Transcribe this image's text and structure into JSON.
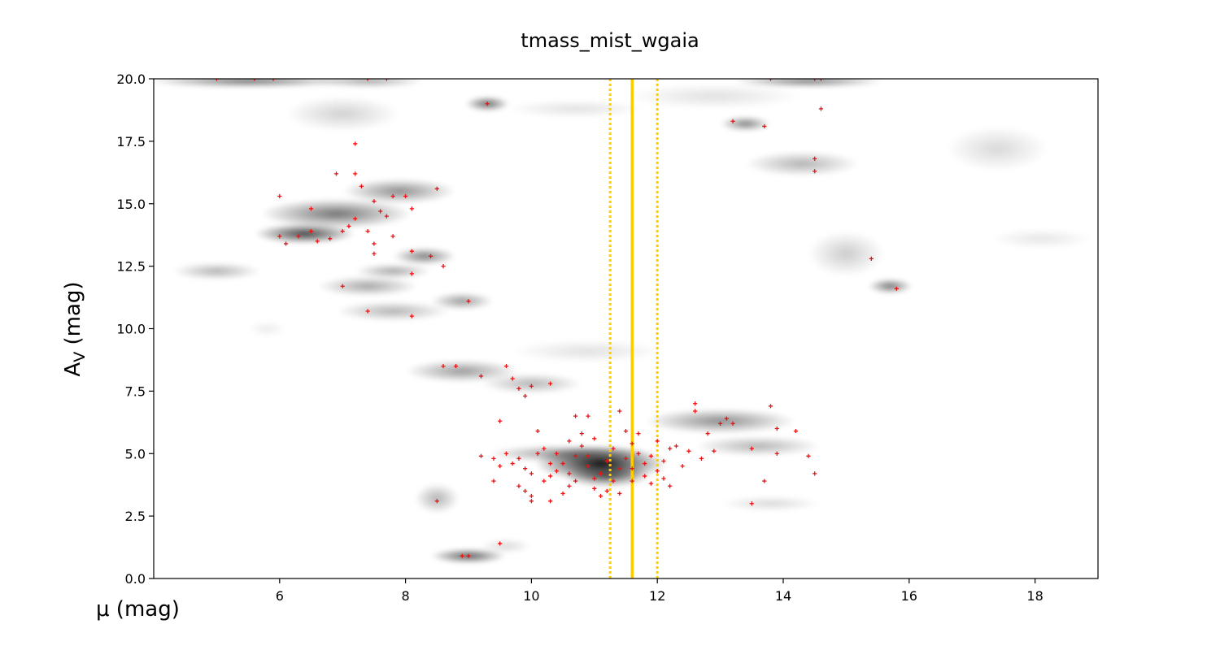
{
  "chart_data": {
    "type": "scatter",
    "title": "tmass_mist_wgaia",
    "xlabel": "μ (mag)",
    "ylabel": {
      "main": "A",
      "sub": "V",
      "rest": " (mag)"
    },
    "xlim": [
      4,
      19
    ],
    "ylim": [
      0,
      20
    ],
    "x_ticks": [
      "6",
      "8",
      "10",
      "12",
      "14",
      "16",
      "18"
    ],
    "y_ticks": [
      "0.0",
      "2.5",
      "5.0",
      "7.5",
      "10.0",
      "12.5",
      "15.0",
      "17.5",
      "20.0"
    ],
    "grid": false,
    "background": "grayscale density (KDE) of posterior samples",
    "density_blobs": [
      {
        "x": 11.1,
        "y": 4.6,
        "sx": 1.05,
        "sy": 0.7,
        "a": 0.95
      },
      {
        "x": 11.2,
        "y": 4.1,
        "sx": 0.7,
        "sy": 0.45,
        "a": 0.6
      },
      {
        "x": 10.6,
        "y": 5.0,
        "sx": 1.3,
        "sy": 0.35,
        "a": 0.45
      },
      {
        "x": 13.0,
        "y": 6.3,
        "sx": 1.2,
        "sy": 0.5,
        "a": 0.45
      },
      {
        "x": 13.6,
        "y": 5.3,
        "sx": 1.0,
        "sy": 0.4,
        "a": 0.3
      },
      {
        "x": 13.8,
        "y": 3.0,
        "sx": 0.8,
        "sy": 0.3,
        "a": 0.15
      },
      {
        "x": 8.9,
        "y": 8.3,
        "sx": 0.9,
        "sy": 0.45,
        "a": 0.4
      },
      {
        "x": 10.0,
        "y": 7.8,
        "sx": 0.8,
        "sy": 0.4,
        "a": 0.3
      },
      {
        "x": 10.9,
        "y": 9.1,
        "sx": 1.2,
        "sy": 0.45,
        "a": 0.12
      },
      {
        "x": 6.4,
        "y": 13.8,
        "sx": 0.8,
        "sy": 0.4,
        "a": 0.75
      },
      {
        "x": 6.9,
        "y": 14.6,
        "sx": 1.2,
        "sy": 0.6,
        "a": 0.55
      },
      {
        "x": 7.9,
        "y": 15.5,
        "sx": 0.9,
        "sy": 0.5,
        "a": 0.45
      },
      {
        "x": 8.3,
        "y": 12.9,
        "sx": 0.5,
        "sy": 0.35,
        "a": 0.5
      },
      {
        "x": 7.4,
        "y": 11.7,
        "sx": 0.8,
        "sy": 0.4,
        "a": 0.35
      },
      {
        "x": 7.8,
        "y": 10.7,
        "sx": 0.9,
        "sy": 0.4,
        "a": 0.3
      },
      {
        "x": 8.9,
        "y": 11.1,
        "sx": 0.5,
        "sy": 0.35,
        "a": 0.4
      },
      {
        "x": 5.0,
        "y": 12.3,
        "sx": 0.7,
        "sy": 0.35,
        "a": 0.3
      },
      {
        "x": 7.8,
        "y": 12.3,
        "sx": 0.6,
        "sy": 0.3,
        "a": 0.35
      },
      {
        "x": 5.5,
        "y": 19.9,
        "sx": 1.6,
        "sy": 0.25,
        "a": 0.55
      },
      {
        "x": 7.4,
        "y": 19.9,
        "sx": 0.9,
        "sy": 0.25,
        "a": 0.35
      },
      {
        "x": 7.0,
        "y": 18.6,
        "sx": 0.9,
        "sy": 0.7,
        "a": 0.18
      },
      {
        "x": 9.3,
        "y": 19.0,
        "sx": 0.35,
        "sy": 0.3,
        "a": 0.6
      },
      {
        "x": 10.7,
        "y": 18.8,
        "sx": 1.1,
        "sy": 0.35,
        "a": 0.12
      },
      {
        "x": 9.0,
        "y": 0.9,
        "sx": 0.6,
        "sy": 0.3,
        "a": 0.65
      },
      {
        "x": 8.5,
        "y": 3.2,
        "sx": 0.35,
        "sy": 0.6,
        "a": 0.3
      },
      {
        "x": 9.6,
        "y": 1.3,
        "sx": 0.4,
        "sy": 0.3,
        "a": 0.15
      },
      {
        "x": 14.4,
        "y": 19.9,
        "sx": 1.2,
        "sy": 0.25,
        "a": 0.5
      },
      {
        "x": 13.4,
        "y": 18.2,
        "sx": 0.4,
        "sy": 0.3,
        "a": 0.5
      },
      {
        "x": 14.3,
        "y": 16.6,
        "sx": 0.9,
        "sy": 0.5,
        "a": 0.3
      },
      {
        "x": 15.7,
        "y": 11.7,
        "sx": 0.35,
        "sy": 0.3,
        "a": 0.55
      },
      {
        "x": 15.0,
        "y": 13.0,
        "sx": 0.6,
        "sy": 0.9,
        "a": 0.2
      },
      {
        "x": 17.4,
        "y": 17.2,
        "sx": 0.8,
        "sy": 0.9,
        "a": 0.15
      },
      {
        "x": 18.1,
        "y": 13.6,
        "sx": 0.8,
        "sy": 0.4,
        "a": 0.1
      },
      {
        "x": 12.9,
        "y": 19.3,
        "sx": 1.4,
        "sy": 0.5,
        "a": 0.12
      },
      {
        "x": 5.8,
        "y": 10.0,
        "sx": 0.3,
        "sy": 0.3,
        "a": 0.08
      }
    ],
    "series": [
      {
        "marker": "+",
        "color": "#ee1111",
        "points": [
          [
            5.0,
            20.0
          ],
          [
            5.6,
            20.0
          ],
          [
            5.9,
            20.0
          ],
          [
            7.4,
            20.0
          ],
          [
            7.7,
            20.0
          ],
          [
            9.3,
            19.0
          ],
          [
            7.2,
            17.4
          ],
          [
            6.9,
            16.2
          ],
          [
            7.2,
            16.2
          ],
          [
            7.3,
            15.7
          ],
          [
            6.0,
            15.3
          ],
          [
            7.5,
            15.1
          ],
          [
            7.8,
            15.3
          ],
          [
            8.0,
            15.3
          ],
          [
            8.5,
            15.6
          ],
          [
            6.5,
            14.8
          ],
          [
            7.6,
            14.7
          ],
          [
            7.7,
            14.5
          ],
          [
            8.1,
            14.8
          ],
          [
            7.2,
            14.4
          ],
          [
            7.1,
            14.1
          ],
          [
            7.0,
            13.9
          ],
          [
            7.4,
            13.9
          ],
          [
            6.0,
            13.7
          ],
          [
            6.1,
            13.4
          ],
          [
            6.3,
            13.7
          ],
          [
            6.5,
            13.9
          ],
          [
            6.6,
            13.5
          ],
          [
            6.8,
            13.6
          ],
          [
            7.5,
            13.4
          ],
          [
            7.8,
            13.7
          ],
          [
            7.5,
            13.0
          ],
          [
            8.1,
            13.1
          ],
          [
            8.4,
            12.9
          ],
          [
            8.6,
            12.5
          ],
          [
            8.1,
            12.2
          ],
          [
            7.0,
            11.7
          ],
          [
            9.0,
            11.1
          ],
          [
            7.4,
            10.7
          ],
          [
            8.1,
            10.5
          ],
          [
            8.6,
            8.5
          ],
          [
            8.8,
            8.5
          ],
          [
            9.2,
            8.1
          ],
          [
            9.6,
            8.5
          ],
          [
            9.7,
            8.0
          ],
          [
            9.8,
            7.6
          ],
          [
            10.0,
            7.7
          ],
          [
            9.9,
            7.3
          ],
          [
            10.3,
            7.8
          ],
          [
            9.5,
            6.3
          ],
          [
            10.7,
            6.5
          ],
          [
            10.9,
            6.5
          ],
          [
            10.1,
            5.9
          ],
          [
            11.4,
            6.7
          ],
          [
            12.6,
            7.0
          ],
          [
            12.6,
            6.7
          ],
          [
            13.1,
            6.4
          ],
          [
            13.0,
            6.2
          ],
          [
            13.2,
            6.2
          ],
          [
            13.8,
            6.9
          ],
          [
            12.8,
            5.8
          ],
          [
            13.9,
            6.0
          ],
          [
            14.2,
            5.9
          ],
          [
            13.5,
            5.2
          ],
          [
            13.9,
            5.0
          ],
          [
            12.5,
            5.1
          ],
          [
            12.9,
            5.1
          ],
          [
            12.7,
            4.8
          ],
          [
            14.4,
            4.9
          ],
          [
            14.5,
            4.2
          ],
          [
            13.7,
            3.9
          ],
          [
            13.5,
            3.0
          ],
          [
            9.2,
            4.9
          ],
          [
            9.4,
            4.8
          ],
          [
            9.6,
            5.0
          ],
          [
            9.5,
            4.5
          ],
          [
            9.7,
            4.6
          ],
          [
            9.4,
            3.9
          ],
          [
            9.8,
            4.8
          ],
          [
            9.9,
            4.4
          ],
          [
            10.0,
            4.2
          ],
          [
            10.1,
            5.0
          ],
          [
            10.2,
            5.2
          ],
          [
            9.8,
            3.7
          ],
          [
            9.9,
            3.5
          ],
          [
            10.0,
            3.3
          ],
          [
            10.0,
            3.1
          ],
          [
            10.3,
            3.1
          ],
          [
            10.5,
            3.4
          ],
          [
            10.6,
            3.7
          ],
          [
            10.2,
            3.9
          ],
          [
            10.3,
            4.1
          ],
          [
            10.4,
            4.3
          ],
          [
            10.5,
            4.6
          ],
          [
            10.6,
            4.2
          ],
          [
            10.7,
            4.9
          ],
          [
            10.8,
            5.3
          ],
          [
            10.9,
            4.5
          ],
          [
            11.0,
            4.0
          ],
          [
            11.0,
            3.6
          ],
          [
            11.1,
            3.3
          ],
          [
            11.2,
            3.5
          ],
          [
            11.3,
            3.9
          ],
          [
            11.4,
            4.4
          ],
          [
            11.5,
            4.8
          ],
          [
            11.6,
            5.4
          ],
          [
            11.7,
            5.0
          ],
          [
            11.8,
            4.6
          ],
          [
            11.8,
            4.1
          ],
          [
            11.9,
            3.8
          ],
          [
            12.0,
            4.3
          ],
          [
            12.1,
            4.7
          ],
          [
            12.2,
            5.2
          ],
          [
            12.3,
            5.3
          ],
          [
            12.1,
            4.0
          ],
          [
            12.2,
            3.7
          ],
          [
            11.7,
            5.8
          ],
          [
            11.3,
            5.2
          ],
          [
            11.0,
            5.6
          ],
          [
            10.8,
            5.8
          ],
          [
            10.6,
            5.5
          ],
          [
            10.4,
            5.0
          ],
          [
            11.2,
            4.7
          ],
          [
            11.4,
            3.4
          ],
          [
            11.6,
            3.9
          ],
          [
            11.9,
            4.9
          ],
          [
            12.0,
            5.5
          ],
          [
            11.5,
            5.9
          ],
          [
            10.9,
            4.9
          ],
          [
            10.7,
            3.9
          ],
          [
            11.1,
            4.2
          ],
          [
            12.4,
            4.5
          ],
          [
            10.3,
            4.6
          ],
          [
            11.6,
            4.4
          ],
          [
            8.5,
            3.1
          ],
          [
            9.5,
            1.4
          ],
          [
            8.9,
            0.9
          ],
          [
            9.0,
            0.9
          ],
          [
            13.2,
            18.3
          ],
          [
            13.7,
            18.1
          ],
          [
            14.6,
            18.8
          ],
          [
            14.5,
            16.8
          ],
          [
            14.5,
            16.3
          ],
          [
            13.8,
            20.0
          ],
          [
            14.5,
            20.0
          ],
          [
            14.6,
            20.0
          ],
          [
            15.4,
            12.8
          ],
          [
            15.8,
            11.6
          ]
        ]
      }
    ],
    "reference_lines": {
      "color": "#ffcc00",
      "solid": 11.6,
      "dotted": [
        11.25,
        12.0
      ]
    }
  }
}
